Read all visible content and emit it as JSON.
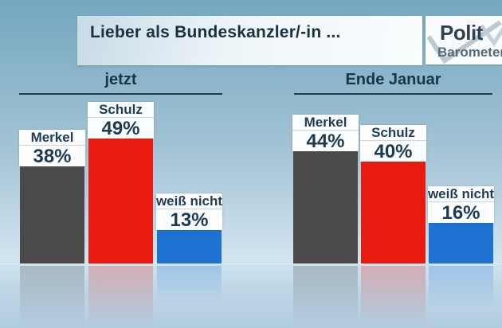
{
  "title": "Lieber als Bundeskanzler/-in ...",
  "logo": {
    "line1": "Polit",
    "line2": "Barometer"
  },
  "chart_data": {
    "type": "bar",
    "title": "Lieber als Bundeskanzler/-in ...",
    "unit": "percent",
    "grid": false,
    "legend": "none",
    "ylim": [
      0,
      55
    ],
    "groups": [
      {
        "label": "jetzt",
        "bars": [
          {
            "name": "Merkel",
            "value": 38,
            "display": "38%",
            "color": "#4a4a4a"
          },
          {
            "name": "Schulz",
            "value": 49,
            "display": "49%",
            "color": "#e81b10"
          },
          {
            "name": "weiß nicht",
            "value": 13,
            "display": "13%",
            "color": "#1e73d2"
          }
        ]
      },
      {
        "label": "Ende Januar",
        "bars": [
          {
            "name": "Merkel",
            "value": 44,
            "display": "44%",
            "color": "#4a4a4a"
          },
          {
            "name": "Schulz",
            "value": 40,
            "display": "40%",
            "color": "#e81b10"
          },
          {
            "name": "weiß nicht",
            "value": 16,
            "display": "16%",
            "color": "#1e73d2"
          }
        ]
      }
    ]
  },
  "colors": {
    "background_top": "#74a8c0",
    "background_bottom": "#b1cbdf",
    "bar_merkel": "#4a4a4a",
    "bar_schulz": "#e81b10",
    "bar_weiss_nicht": "#1e73d2",
    "text_navy": "#1d3a52",
    "header_line": "#1e3e53",
    "label_background": "#fcfdfe"
  }
}
